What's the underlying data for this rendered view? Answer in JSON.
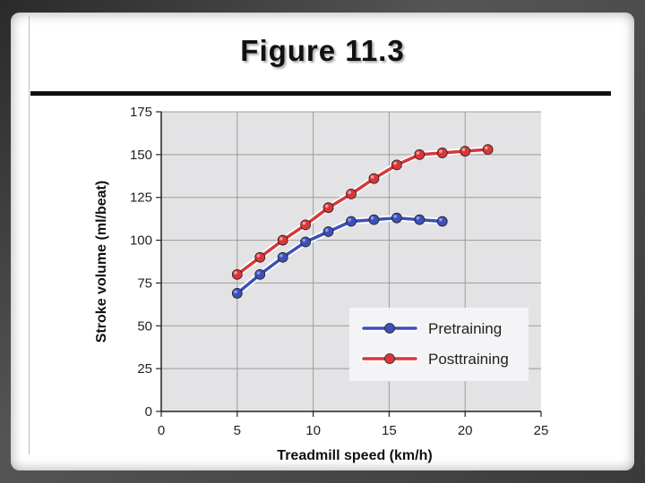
{
  "slide": {
    "title": "Figure 11.3"
  },
  "chart_data": {
    "type": "line",
    "xlabel": "Treadmill speed (km/h)",
    "ylabel": "Stroke volume (ml/beat)",
    "xlim": [
      0,
      25
    ],
    "ylim": [
      0,
      175
    ],
    "x_ticks": [
      0,
      5,
      10,
      15,
      20,
      25
    ],
    "y_ticks": [
      0,
      25,
      50,
      75,
      100,
      125,
      150,
      175
    ],
    "grid": true,
    "legend_position": "bottom-right",
    "series": [
      {
        "name": "Pretraining",
        "color": "#3d4fb8",
        "x": [
          5,
          6.5,
          8,
          9.5,
          11,
          12.5,
          14,
          15.5,
          17,
          18.5
        ],
        "y": [
          69,
          80,
          90,
          99,
          105,
          111,
          112,
          113,
          112,
          111
        ]
      },
      {
        "name": "Posttraining",
        "color": "#d8373a",
        "x": [
          5,
          6.5,
          8,
          9.5,
          11,
          12.5,
          14,
          15.5,
          17,
          18.5,
          20,
          21.5
        ],
        "y": [
          80,
          90,
          100,
          109,
          119,
          127,
          136,
          144,
          150,
          151,
          152,
          153
        ]
      }
    ]
  }
}
